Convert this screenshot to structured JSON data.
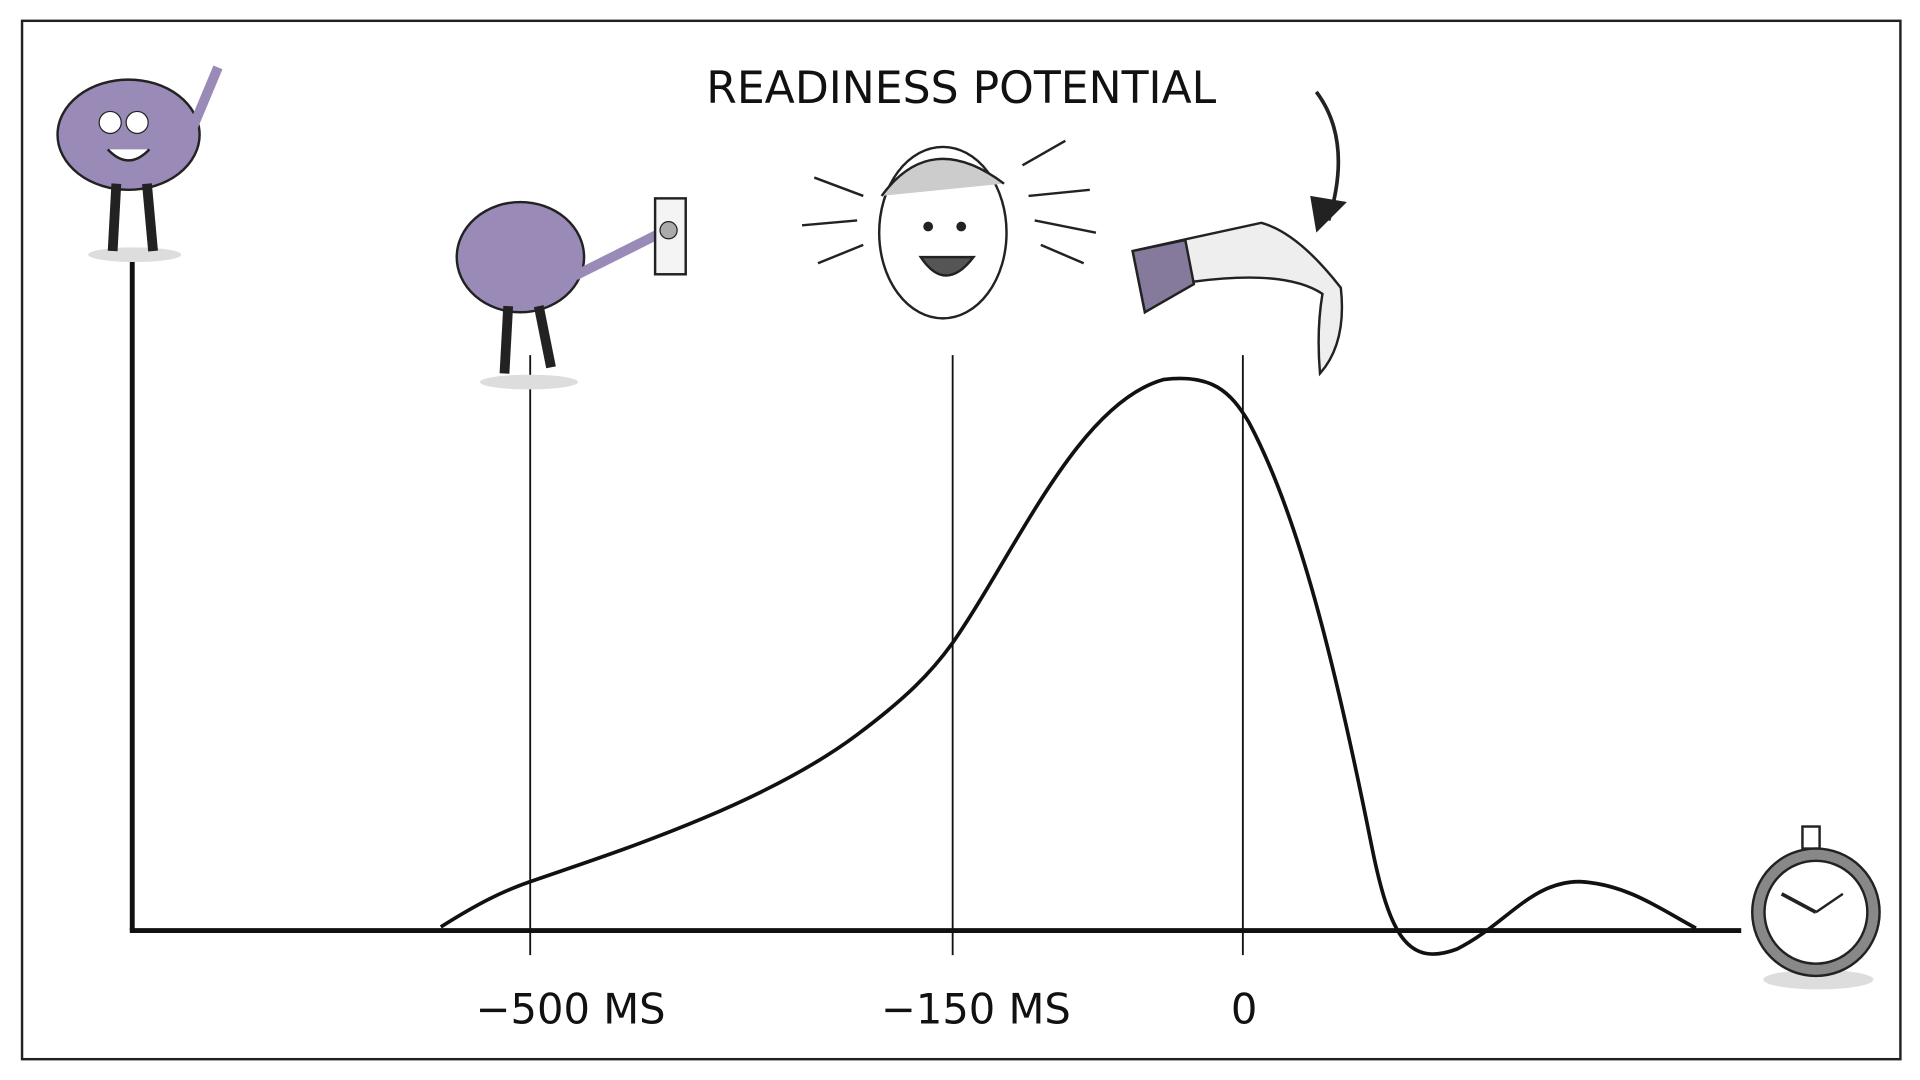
{
  "diagram": {
    "title": "READINESS POTENTIAL",
    "time_labels": [
      "−500 MS",
      "−150 MS",
      "0"
    ]
  }
}
